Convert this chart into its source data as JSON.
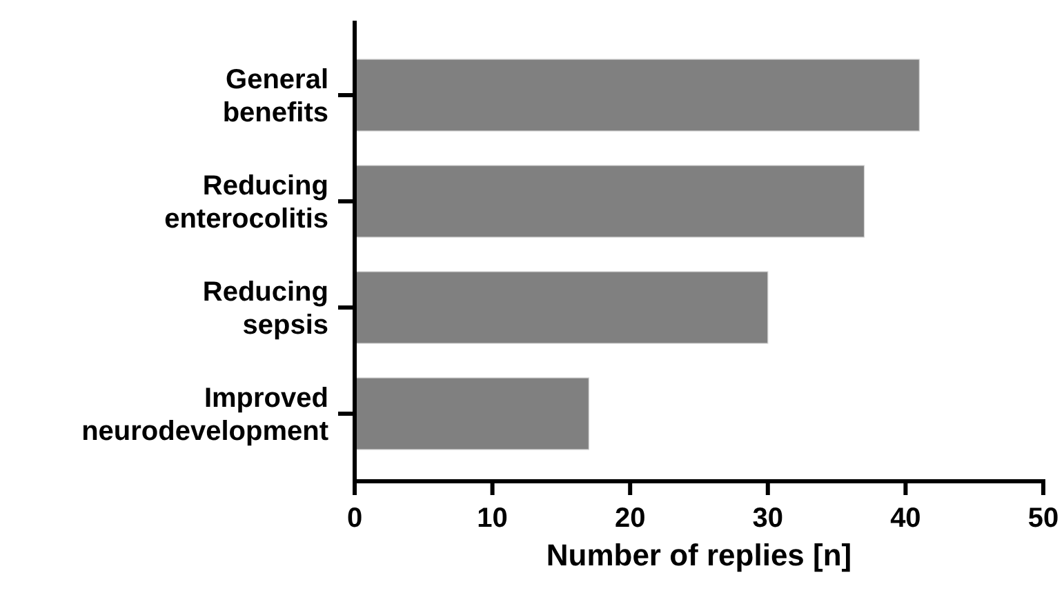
{
  "chart_data": {
    "type": "bar",
    "orientation": "horizontal",
    "xlabel": "Number of replies [n]",
    "categories": [
      "General benefits",
      "Reducing enterocolitis",
      "Reducing sepsis",
      "Improved neurodevelopment"
    ],
    "values": [
      41,
      37,
      30,
      17
    ],
    "color": "#808080",
    "xlim": [
      0,
      50
    ],
    "xticks": [
      0,
      10,
      20,
      30,
      40,
      50
    ],
    "grid": false
  }
}
